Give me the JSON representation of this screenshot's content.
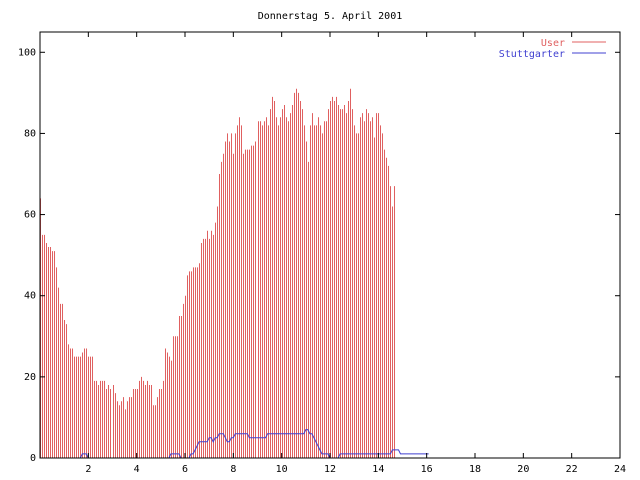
{
  "chart_data": {
    "type": "bar",
    "title": "Donnerstag 5. April 2001",
    "xlabel": "",
    "ylabel": "",
    "xlim": [
      0,
      24
    ],
    "ylim": [
      0,
      105
    ],
    "x_ticks": [
      "2",
      "4",
      "6",
      "8",
      "10",
      "12",
      "14",
      "16",
      "18",
      "20",
      "22",
      "24"
    ],
    "y_ticks": [
      "0",
      "20",
      "40",
      "60",
      "80",
      "100"
    ],
    "grid": false,
    "legend_position": "top-right",
    "series": [
      {
        "name": "User",
        "kind": "impulses",
        "color": "#e06060",
        "step_minutes": 5,
        "values": [
          64,
          55,
          55,
          53,
          52,
          52,
          51,
          51,
          47,
          42,
          38,
          38,
          34,
          33,
          28,
          27,
          27,
          25,
          25,
          25,
          25,
          26,
          27,
          27,
          25,
          25,
          25,
          19,
          19,
          18,
          19,
          19,
          19,
          17,
          18,
          17,
          18,
          16,
          14,
          13,
          14,
          15,
          12,
          14,
          15,
          15,
          17,
          17,
          17,
          19,
          20,
          19,
          18,
          19,
          18,
          18,
          13,
          13,
          15,
          17,
          17,
          19,
          27,
          26,
          25,
          24,
          30,
          30,
          30,
          35,
          35,
          38,
          40,
          45,
          46,
          46,
          47,
          47,
          47,
          48,
          53,
          54,
          54,
          56,
          54,
          56,
          55,
          58,
          62,
          70,
          73,
          75,
          78,
          80,
          78,
          80,
          75,
          80,
          82,
          84,
          82,
          75,
          76,
          76,
          76,
          77,
          77,
          78,
          83,
          83,
          82,
          83,
          84,
          82,
          86,
          89,
          88,
          84,
          82,
          84,
          86,
          87,
          84,
          83,
          85,
          87,
          90,
          91,
          90,
          88,
          86,
          82,
          78,
          73,
          82,
          85,
          82,
          82,
          84,
          82,
          80,
          83,
          83,
          86,
          88,
          89,
          88,
          89,
          87,
          86,
          86,
          87,
          85,
          88,
          91,
          86,
          82,
          80,
          80,
          84,
          85,
          83,
          86,
          85,
          83,
          84,
          79,
          85,
          85,
          82,
          80,
          76,
          74,
          72,
          67,
          62,
          67
        ]
      },
      {
        "name": "Stuttgarter",
        "kind": "line",
        "color": "#4040d0",
        "step_minutes": 5,
        "values": [
          0,
          0,
          0,
          0,
          0,
          0,
          0,
          0,
          0,
          0,
          0,
          0,
          0,
          0,
          0,
          0,
          0,
          0,
          0,
          0,
          0,
          1,
          1,
          1,
          0,
          0,
          0,
          0,
          0,
          0,
          0,
          0,
          0,
          0,
          0,
          0,
          0,
          0,
          0,
          0,
          0,
          0,
          0,
          0,
          0,
          0,
          0,
          0,
          0,
          0,
          0,
          0,
          0,
          0,
          0,
          0,
          0,
          0,
          0,
          0,
          0,
          0,
          0,
          0,
          0,
          1,
          1,
          1,
          1,
          1,
          0,
          0,
          0,
          0,
          0,
          1,
          1,
          2,
          3,
          4,
          4,
          4,
          4,
          4,
          5,
          5,
          4,
          5,
          5,
          6,
          6,
          6,
          5,
          4,
          4,
          5,
          5,
          6,
          6,
          6,
          6,
          6,
          6,
          6,
          5,
          5,
          5,
          5,
          5,
          5,
          5,
          5,
          5,
          6,
          6,
          6,
          6,
          6,
          6,
          6,
          6,
          6,
          6,
          6,
          6,
          6,
          6,
          6,
          6,
          6,
          6,
          6,
          7,
          7,
          6,
          6,
          5,
          4,
          3,
          2,
          1,
          1,
          1,
          1,
          0,
          0,
          0,
          0,
          0,
          1,
          1,
          1,
          1,
          1,
          1,
          1,
          1,
          1,
          1,
          1,
          1,
          1,
          1,
          1,
          1,
          1,
          1,
          1,
          1,
          1,
          1,
          1,
          1,
          1,
          1,
          2,
          2,
          2,
          2,
          1,
          1,
          1,
          1,
          1,
          1,
          1,
          1,
          1,
          1,
          1,
          1,
          1,
          1,
          1
        ]
      }
    ]
  }
}
